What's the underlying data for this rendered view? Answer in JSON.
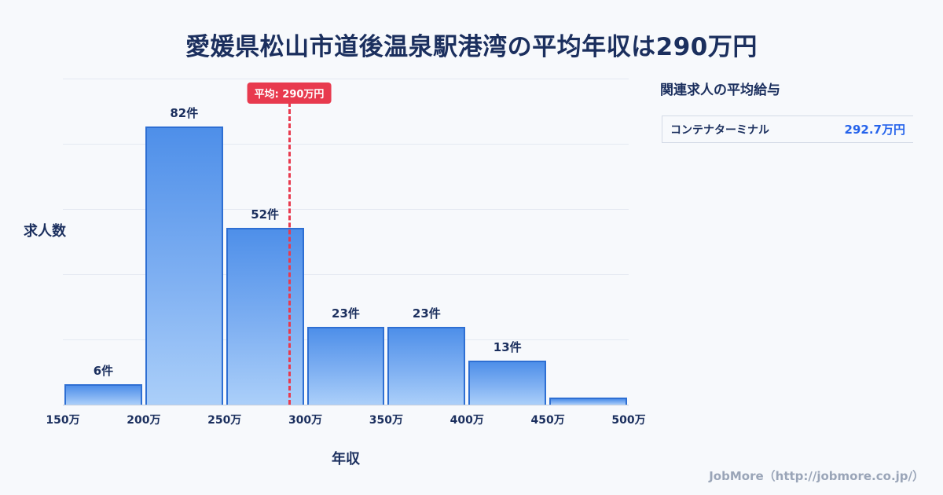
{
  "page": {
    "title": "愛媛県松山市道後温泉駅港湾の平均年収は290万円",
    "footer": "JobMore（http://jobmore.co.jp/）"
  },
  "chart_data": {
    "type": "bar",
    "title": "愛媛県松山市道後温泉駅港湾の平均年収は290万円",
    "xlabel": "年収",
    "ylabel": "求人数",
    "categories": [
      "150万",
      "200万",
      "250万",
      "300万",
      "350万",
      "400万",
      "450万",
      "500万"
    ],
    "bins": [
      {
        "range": "150万-200万",
        "count": 6,
        "label": "6件"
      },
      {
        "range": "200万-250万",
        "count": 82,
        "label": "82件"
      },
      {
        "range": "250万-300万",
        "count": 52,
        "label": "52件"
      },
      {
        "range": "300万-350万",
        "count": 23,
        "label": "23件"
      },
      {
        "range": "350万-400万",
        "count": 23,
        "label": "23件"
      },
      {
        "range": "400万-450万",
        "count": 13,
        "label": "13件"
      },
      {
        "range": "450万-500万",
        "count": 2,
        "label": ""
      }
    ],
    "ylim": [
      0,
      96
    ],
    "grid": true,
    "legend": "none",
    "average_line": {
      "value_label": "平均: 290万円",
      "x_value": 290,
      "x_min": 150,
      "x_max": 500,
      "color": "#e83a4e"
    }
  },
  "side_panel": {
    "heading": "関連求人の平均給与",
    "rows": [
      {
        "name": "コンテナターミナル",
        "value": "292.7万円"
      }
    ]
  },
  "colors": {
    "background": "#f7f9fc",
    "title_text": "#1b2f5e",
    "bar_fill_top": "#4e8fe9",
    "bar_fill_bottom": "#abcff9",
    "bar_border": "#2e6fd3",
    "average_line": "#e83a4e",
    "side_value_text": "#2563eb",
    "footer_text": "#9aa5b8"
  }
}
